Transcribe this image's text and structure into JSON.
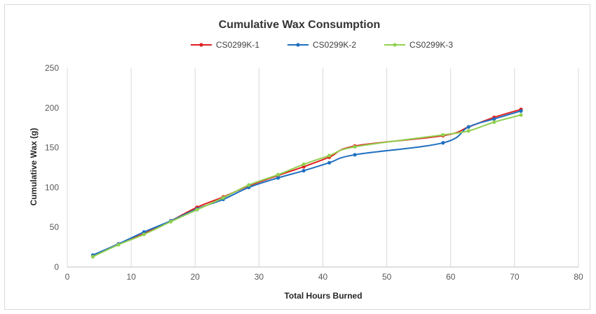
{
  "chart_data": {
    "type": "line",
    "title": "Cumulative Wax Consumption",
    "xlabel": "Total Hours Burned",
    "ylabel": "Cumulative Wax (g)",
    "xlim": [
      0,
      80
    ],
    "ylim": [
      0,
      250
    ],
    "x_ticks": [
      0,
      10,
      20,
      30,
      40,
      50,
      60,
      70,
      80
    ],
    "y_ticks": [
      0,
      50,
      100,
      150,
      200,
      250
    ],
    "grid": "vertical",
    "legend_position": "top",
    "series": [
      {
        "name": "CS0299K-1",
        "color": "#e02020",
        "points": [
          [
            4,
            14
          ],
          [
            8,
            29
          ],
          [
            12,
            42
          ],
          [
            16.2,
            58
          ],
          [
            20.3,
            75
          ],
          [
            24.4,
            88
          ],
          [
            28.4,
            102
          ],
          [
            33,
            115
          ],
          [
            37,
            126
          ],
          [
            41,
            138
          ],
          [
            45,
            152
          ],
          [
            58.8,
            165
          ],
          [
            62.8,
            176
          ],
          [
            66.8,
            188
          ],
          [
            71,
            198
          ]
        ]
      },
      {
        "name": "CS0299K-2",
        "color": "#1f6fc0",
        "points": [
          [
            4,
            15
          ],
          [
            8,
            29
          ],
          [
            12,
            44
          ],
          [
            16.2,
            58
          ],
          [
            20.3,
            73
          ],
          [
            24.4,
            85
          ],
          [
            28.4,
            100
          ],
          [
            33,
            112
          ],
          [
            37,
            121
          ],
          [
            41,
            131
          ],
          [
            45,
            141
          ],
          [
            58.8,
            156
          ],
          [
            62.8,
            176
          ],
          [
            66.8,
            186
          ],
          [
            71,
            196
          ]
        ]
      },
      {
        "name": "CS0299K-3",
        "color": "#92d050",
        "points": [
          [
            4,
            13
          ],
          [
            8,
            28
          ],
          [
            12,
            41
          ],
          [
            16.2,
            57
          ],
          [
            20.3,
            72
          ],
          [
            24.4,
            87
          ],
          [
            28.4,
            103
          ],
          [
            33,
            116
          ],
          [
            37,
            129
          ],
          [
            41,
            140
          ],
          [
            45,
            151
          ],
          [
            58.8,
            166
          ],
          [
            62.8,
            171
          ],
          [
            66.8,
            182
          ],
          [
            71,
            191
          ]
        ]
      }
    ]
  }
}
